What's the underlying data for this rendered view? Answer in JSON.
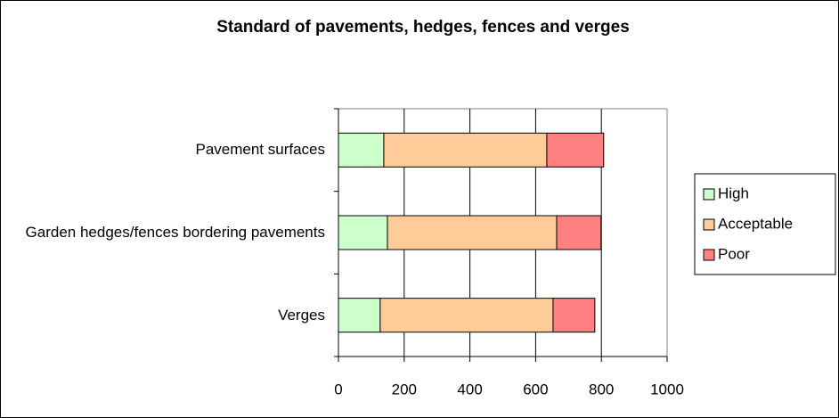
{
  "chart_data": {
    "type": "bar",
    "orientation": "horizontal",
    "stacked": true,
    "title": "Standard of pavements, hedges, fences and verges",
    "categories": [
      "Pavement surfaces",
      "Garden hedges/fences bordering pavements",
      "Verges"
    ],
    "series": [
      {
        "name": "High",
        "color": "#ccffcc",
        "values": [
          138,
          149,
          127
        ]
      },
      {
        "name": "Acceptable",
        "color": "#ffcc99",
        "values": [
          496,
          515,
          526
        ]
      },
      {
        "name": "Poor",
        "color": "#ff8080",
        "values": [
          173,
          135,
          127
        ]
      }
    ],
    "xlim": [
      0,
      1000
    ],
    "xticks": [
      0,
      200,
      400,
      600,
      800,
      1000
    ],
    "grid": true,
    "legend": "right"
  }
}
